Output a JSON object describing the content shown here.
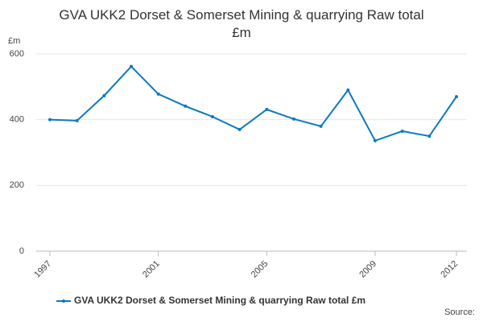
{
  "chart_data": {
    "type": "line",
    "title": "GVA UKK2 Dorset & Somerset Mining & quarrying Raw total £m",
    "y_label": "£m",
    "x": [
      1997,
      1998,
      1999,
      2000,
      2001,
      2002,
      2003,
      2004,
      2005,
      2006,
      2007,
      2008,
      2009,
      2010,
      2011,
      2012
    ],
    "series": [
      {
        "name": "GVA UKK2 Dorset & Somerset Mining & quarrying Raw total £m",
        "color": "#0b7ac0",
        "values": [
          400,
          397,
          473,
          562,
          478,
          441,
          409,
          370,
          431,
          402,
          380,
          490,
          336,
          365,
          350,
          470
        ]
      }
    ],
    "xlim": [
      1997,
      2012
    ],
    "xticks": [
      1997,
      2001,
      2005,
      2009,
      2012
    ],
    "ylim": [
      0,
      600
    ],
    "yticks": [
      0,
      200,
      400,
      600
    ],
    "grid": true,
    "legend": "bottom",
    "source": "Source:"
  }
}
